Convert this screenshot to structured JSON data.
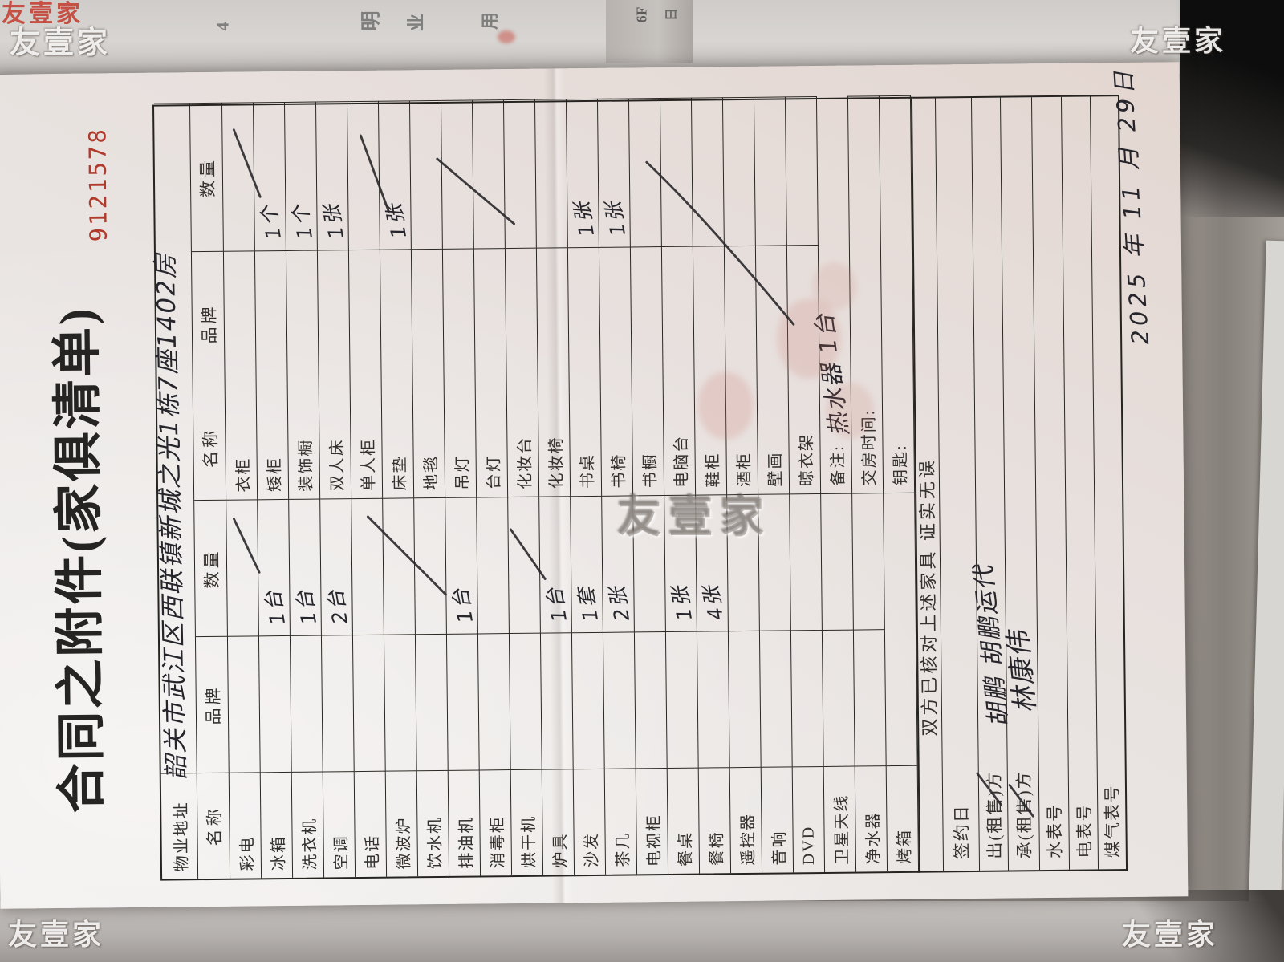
{
  "watermark": {
    "text": "友壹家"
  },
  "background_fragments": [
    "4",
    "明",
    "业",
    "用",
    "6F",
    "日"
  ],
  "document": {
    "serial": "9121578",
    "title": "合同之附件(家俱清单)",
    "address_label": "物业地址",
    "address_value": "韶关市武江区西联镇新城之光1栋7座1402房",
    "columns": [
      "名称",
      "品牌",
      "数量",
      "名称",
      "品牌",
      "数量"
    ],
    "items_left": [
      {
        "name": "彩电",
        "brand": "",
        "qty": ""
      },
      {
        "name": "冰箱",
        "brand": "",
        "qty": "1台"
      },
      {
        "name": "洗衣机",
        "brand": "",
        "qty": "1台"
      },
      {
        "name": "空调",
        "brand": "",
        "qty": "2台"
      },
      {
        "name": "电话",
        "brand": "",
        "qty": ""
      },
      {
        "name": "微波炉",
        "brand": "",
        "qty": ""
      },
      {
        "name": "饮水机",
        "brand": "",
        "qty": ""
      },
      {
        "name": "排油机",
        "brand": "",
        "qty": "1台"
      },
      {
        "name": "消毒柜",
        "brand": "",
        "qty": ""
      },
      {
        "name": "烘干机",
        "brand": "",
        "qty": ""
      },
      {
        "name": "炉具",
        "brand": "",
        "qty": "1台"
      },
      {
        "name": "沙发",
        "brand": "",
        "qty": "1套"
      },
      {
        "name": "茶几",
        "brand": "",
        "qty": "2张"
      },
      {
        "name": "电视柜",
        "brand": "",
        "qty": ""
      },
      {
        "name": "餐桌",
        "brand": "",
        "qty": "1张"
      },
      {
        "name": "餐椅",
        "brand": "",
        "qty": "4张"
      },
      {
        "name": "遥控器",
        "brand": "",
        "qty": ""
      },
      {
        "name": "音响",
        "brand": "",
        "qty": ""
      },
      {
        "name": "DVD",
        "brand": "",
        "qty": ""
      },
      {
        "name": "卫星天线",
        "brand": "",
        "qty": ""
      },
      {
        "name": "净水器",
        "brand": "",
        "qty": ""
      },
      {
        "name": "烤箱",
        "brand": "",
        "qty": ""
      }
    ],
    "items_right": [
      {
        "name": "衣柜",
        "brand": "",
        "qty": ""
      },
      {
        "name": "矮柜",
        "brand": "",
        "qty": "1个"
      },
      {
        "name": "装饰橱",
        "brand": "",
        "qty": "1个"
      },
      {
        "name": "双人床",
        "brand": "",
        "qty": "1张"
      },
      {
        "name": "单人柜",
        "brand": "",
        "qty": ""
      },
      {
        "name": "床垫",
        "brand": "",
        "qty": "1张"
      },
      {
        "name": "地毯",
        "brand": "",
        "qty": ""
      },
      {
        "name": "吊灯",
        "brand": "",
        "qty": ""
      },
      {
        "name": "台灯",
        "brand": "",
        "qty": ""
      },
      {
        "name": "化妆台",
        "brand": "",
        "qty": ""
      },
      {
        "name": "化妆椅",
        "brand": "",
        "qty": ""
      },
      {
        "name": "书桌",
        "brand": "",
        "qty": "1张"
      },
      {
        "name": "书椅",
        "brand": "",
        "qty": "1张"
      },
      {
        "name": "书橱",
        "brand": "",
        "qty": ""
      },
      {
        "name": "电脑台",
        "brand": "",
        "qty": ""
      },
      {
        "name": "鞋柜",
        "brand": "",
        "qty": ""
      },
      {
        "name": "酒柜",
        "brand": "",
        "qty": ""
      },
      {
        "name": "壁画",
        "brand": "",
        "qty": ""
      },
      {
        "name": "晾衣架",
        "brand": "",
        "qty": ""
      }
    ],
    "remark_label": "备注:",
    "remark_value": "热水器 1台",
    "handover_label": "交房时间:",
    "keys_label": "钥匙:",
    "confirm_text": "双方已核对上述家具  证实无误",
    "sign_rows": [
      {
        "label": "签约日",
        "value": ""
      },
      {
        "label": "出(租售)方",
        "value": "胡鹏  胡鹏运代"
      },
      {
        "label": "承(租售)方",
        "value": "林康伟"
      },
      {
        "label": "水表号",
        "value": ""
      },
      {
        "label": "电表号",
        "value": ""
      },
      {
        "label": "煤气表号",
        "value": ""
      }
    ],
    "date_text": "2025 年 11 月 29日"
  }
}
